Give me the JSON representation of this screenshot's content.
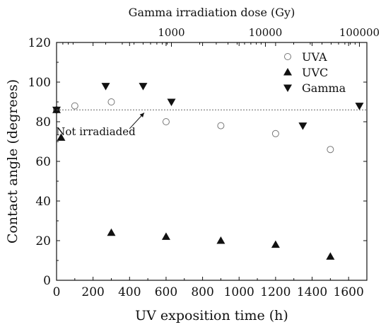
{
  "chart_data": {
    "type": "scatter",
    "xlabel": "UV exposition time (h)",
    "ylabel": "Contact angle (degrees)",
    "top_xlabel": "Gamma irradiation dose (Gy)",
    "xlim": [
      0,
      1700
    ],
    "ylim": [
      0,
      120
    ],
    "x_ticks": [
      0,
      200,
      400,
      600,
      800,
      1000,
      1200,
      1400,
      1600
    ],
    "x_tick_labels": [
      "0",
      "200",
      "400",
      "600",
      "800",
      "1000",
      "1200",
      "1400",
      "1600"
    ],
    "y_ticks": [
      0,
      20,
      40,
      60,
      80,
      100,
      120
    ],
    "y_tick_labels": [
      "0",
      "20",
      "40",
      "60",
      "80",
      "100",
      "120"
    ],
    "top_axis_scale": "log",
    "top_xlim": [
      60,
      120000
    ],
    "top_ticks": [
      1000,
      10000,
      100000
    ],
    "top_tick_labels": [
      "1000",
      "10000",
      "100000"
    ],
    "legend_position": "top-right",
    "grid": false,
    "reference_line": {
      "y": 86,
      "style": "dotted",
      "annotation": "Not irradiaded"
    },
    "series": [
      {
        "name": "UVA",
        "marker": "open-circle",
        "x_axis": "bottom",
        "x": [
          0,
          100,
          300,
          600,
          900,
          1200,
          1500
        ],
        "y": [
          86,
          88,
          90,
          80,
          78,
          74,
          66
        ]
      },
      {
        "name": "UVC",
        "marker": "filled-triangle-up",
        "x_axis": "bottom",
        "x": [
          0,
          25,
          300,
          600,
          900,
          1200,
          1500
        ],
        "y": [
          86,
          72,
          24,
          22,
          20,
          18,
          12
        ]
      },
      {
        "name": "Gamma",
        "marker": "filled-triangle-down",
        "x_axis": "top",
        "x": [
          60,
          200,
          500,
          1000,
          25000,
          100000
        ],
        "y": [
          86,
          98,
          98,
          90,
          78,
          88
        ]
      }
    ],
    "colors": {
      "ink": "#111111",
      "open_marker": "#777777",
      "reference_line": "#666666"
    }
  }
}
